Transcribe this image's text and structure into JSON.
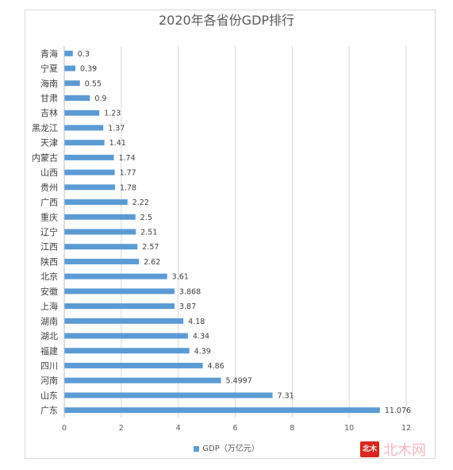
{
  "chart_data": {
    "type": "bar",
    "orientation": "horizontal",
    "title": "2020年各省份GDP排行",
    "categories": [
      "青海",
      "宁夏",
      "海南",
      "甘肃",
      "吉林",
      "黑龙江",
      "天津",
      "内蒙古",
      "山西",
      "贵州",
      "广西",
      "重庆",
      "辽宁",
      "江西",
      "陕西",
      "北京",
      "安徽",
      "上海",
      "湖南",
      "湖北",
      "福建",
      "四川",
      "河南",
      "山东",
      "广东"
    ],
    "series": [
      {
        "name": "GDP（万亿元）",
        "values": [
          0.3,
          0.39,
          0.55,
          0.9,
          1.23,
          1.37,
          1.41,
          1.74,
          1.77,
          1.78,
          2.22,
          2.5,
          2.51,
          2.57,
          2.62,
          3.61,
          3.868,
          3.87,
          4.18,
          4.34,
          4.39,
          4.86,
          5.4997,
          7.31,
          11.076
        ],
        "labels": [
          "0.3",
          "0.39",
          "0.55",
          "0.9",
          "1.23",
          "1.37",
          "1.41",
          "1.74",
          "1.77",
          "1.78",
          "2.22",
          "2.5",
          "2.51",
          "2.57",
          "2.62",
          "3.61",
          "3.868",
          "3.87",
          "4.18",
          "4.34",
          "4.39",
          "4.86",
          "5.4997",
          "7.31",
          "11.076"
        ]
      }
    ],
    "xlim": [
      0,
      12
    ],
    "xticks": [
      "0",
      "2",
      "4",
      "6",
      "8",
      "10",
      "12"
    ],
    "grid": true,
    "legend_position": "bottom",
    "bar_color": "#5b9bd5"
  },
  "watermark": {
    "logo_text": "北木",
    "text": "北木网"
  }
}
